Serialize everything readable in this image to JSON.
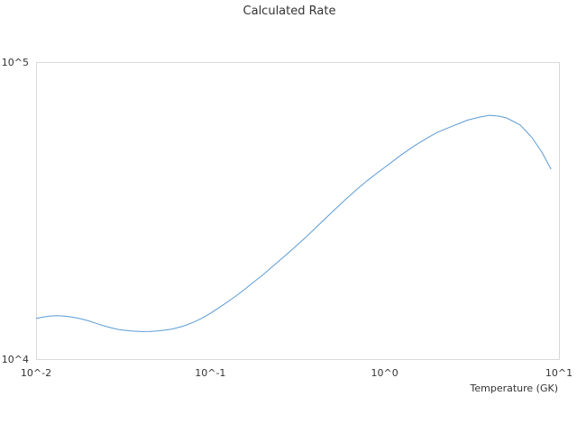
{
  "chart_data": {
    "type": "line",
    "title": "Calculated Rate",
    "xlabel": "Temperature (GK)",
    "ylabel": "",
    "x_scale": "log",
    "y_scale": "log",
    "xlim": [
      0.01,
      10
    ],
    "ylim": [
      10000,
      100000
    ],
    "x_tick_labels": [
      "10^-2",
      "10^-1",
      "10^0",
      "10^1"
    ],
    "y_tick_labels": [
      "10^4",
      "10^5"
    ],
    "grid": false,
    "legend": "none",
    "colors": {
      "series": "#5b9bd5",
      "frame": "#d9d9d9",
      "text": "#333333"
    },
    "series": [
      {
        "x": [
          0.01,
          0.011,
          0.012,
          0.013,
          0.014,
          0.015,
          0.016,
          0.018,
          0.02,
          0.022,
          0.025,
          0.028,
          0.03,
          0.035,
          0.04,
          0.045,
          0.05,
          0.06,
          0.07,
          0.08,
          0.09,
          0.1,
          0.12,
          0.14,
          0.16,
          0.18,
          0.2,
          0.25,
          0.3,
          0.35,
          0.4,
          0.45,
          0.5,
          0.6,
          0.7,
          0.8,
          0.9,
          1.0,
          1.25,
          1.5,
          1.75,
          2.0,
          2.5,
          3.0,
          3.5,
          4.0,
          4.5,
          5.0,
          6.0,
          7.0,
          8.0,
          9.0
        ],
        "y": [
          13700,
          13850,
          13950,
          14000,
          13980,
          13930,
          13860,
          13680,
          13450,
          13200,
          12900,
          12680,
          12570,
          12430,
          12380,
          12390,
          12440,
          12620,
          12910,
          13300,
          13760,
          14250,
          15300,
          16300,
          17300,
          18300,
          19200,
          21500,
          23600,
          25600,
          27600,
          29500,
          31300,
          34600,
          37500,
          40000,
          42200,
          44200,
          48800,
          52500,
          55500,
          58000,
          61200,
          63800,
          65300,
          66200,
          65800,
          64900,
          61400,
          55700,
          49600,
          43600
        ]
      }
    ]
  }
}
